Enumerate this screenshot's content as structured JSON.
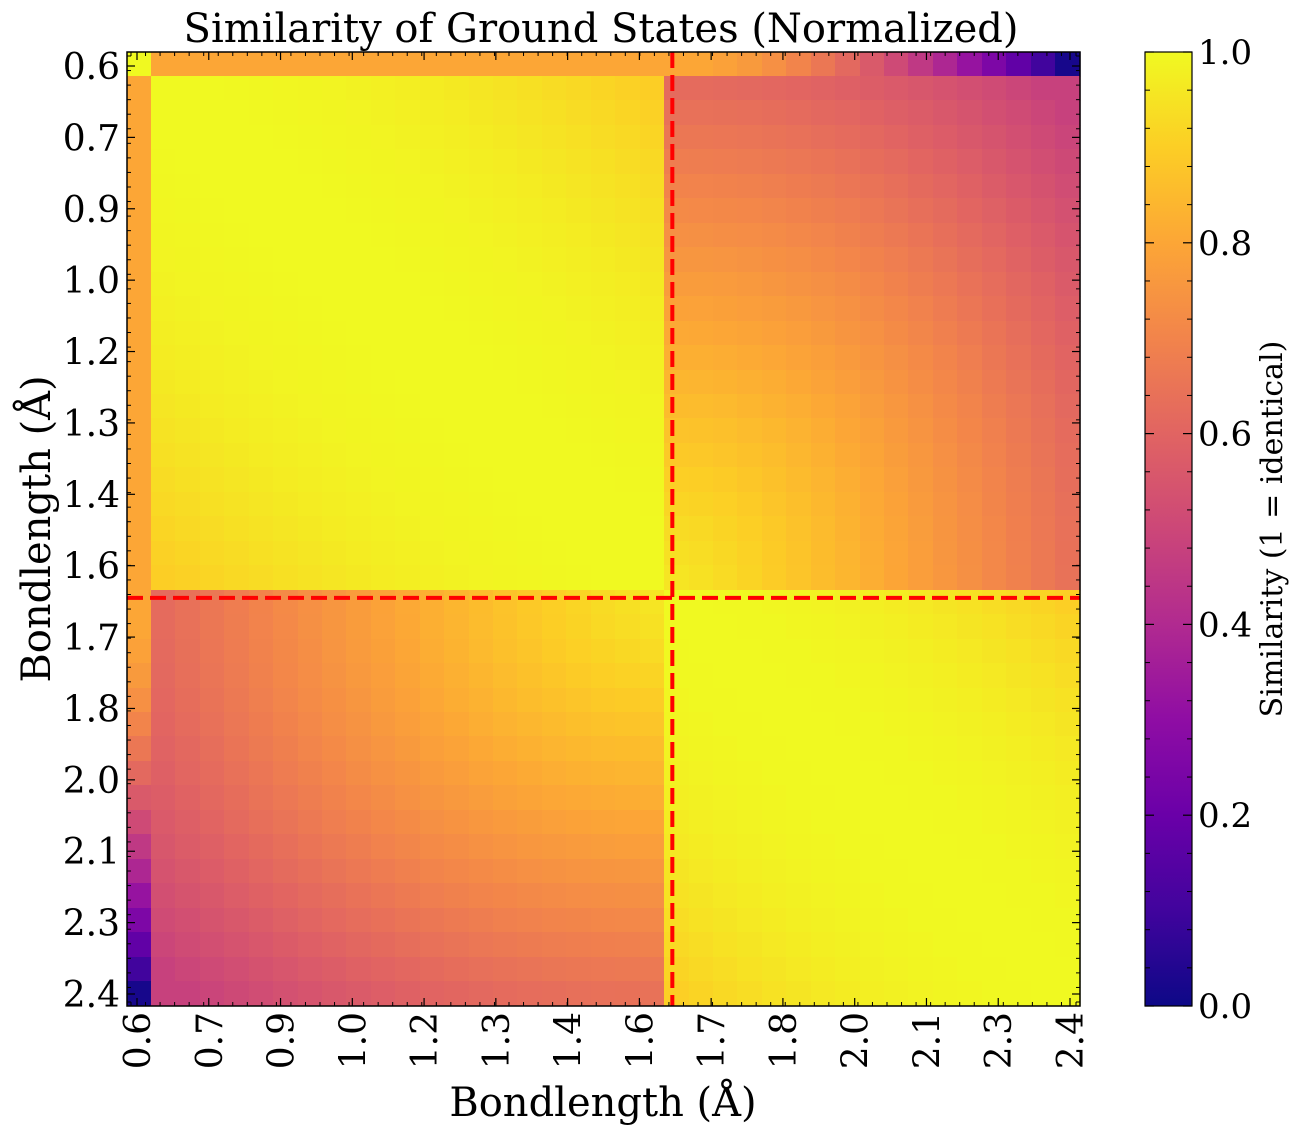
{
  "chart_data": {
    "type": "heatmap",
    "title": "Similarity of Ground States (Normalized)",
    "xlabel": "Bondlength (Å)",
    "ylabel": "Bondlength (Å)",
    "colormap": "plasma",
    "colorbar": {
      "label": "Similarity (1 = identical)",
      "ticks": [
        "0.0",
        "0.2",
        "0.4",
        "0.6",
        "0.8",
        "1.0"
      ],
      "range": [
        0.0,
        1.0
      ]
    },
    "x_range": [
      0.6,
      2.4
    ],
    "y_range": [
      0.6,
      2.4
    ],
    "x_tick_labels": [
      "0.6",
      "0.7",
      "0.9",
      "1.0",
      "1.2",
      "1.3",
      "1.4",
      "1.6",
      "1.7",
      "1.8",
      "2.0",
      "2.1",
      "2.3",
      "2.4"
    ],
    "y_tick_labels": [
      "0.6",
      "0.7",
      "0.9",
      "1.0",
      "1.2",
      "1.3",
      "1.4",
      "1.6",
      "1.7",
      "1.8",
      "2.0",
      "2.1",
      "2.3",
      "2.4"
    ],
    "grid_size": 39,
    "reference_line": 1.63,
    "reference_line_color": "#ff0000",
    "similarity_model": {
      "cluster_1": [
        0.7,
        1.63
      ],
      "cluster_2": [
        1.63,
        2.4
      ],
      "within_cluster_min": 0.9,
      "cross_cluster_min": 0.48,
      "first_row_value": 0.8,
      "corner_value": 0.02
    }
  }
}
